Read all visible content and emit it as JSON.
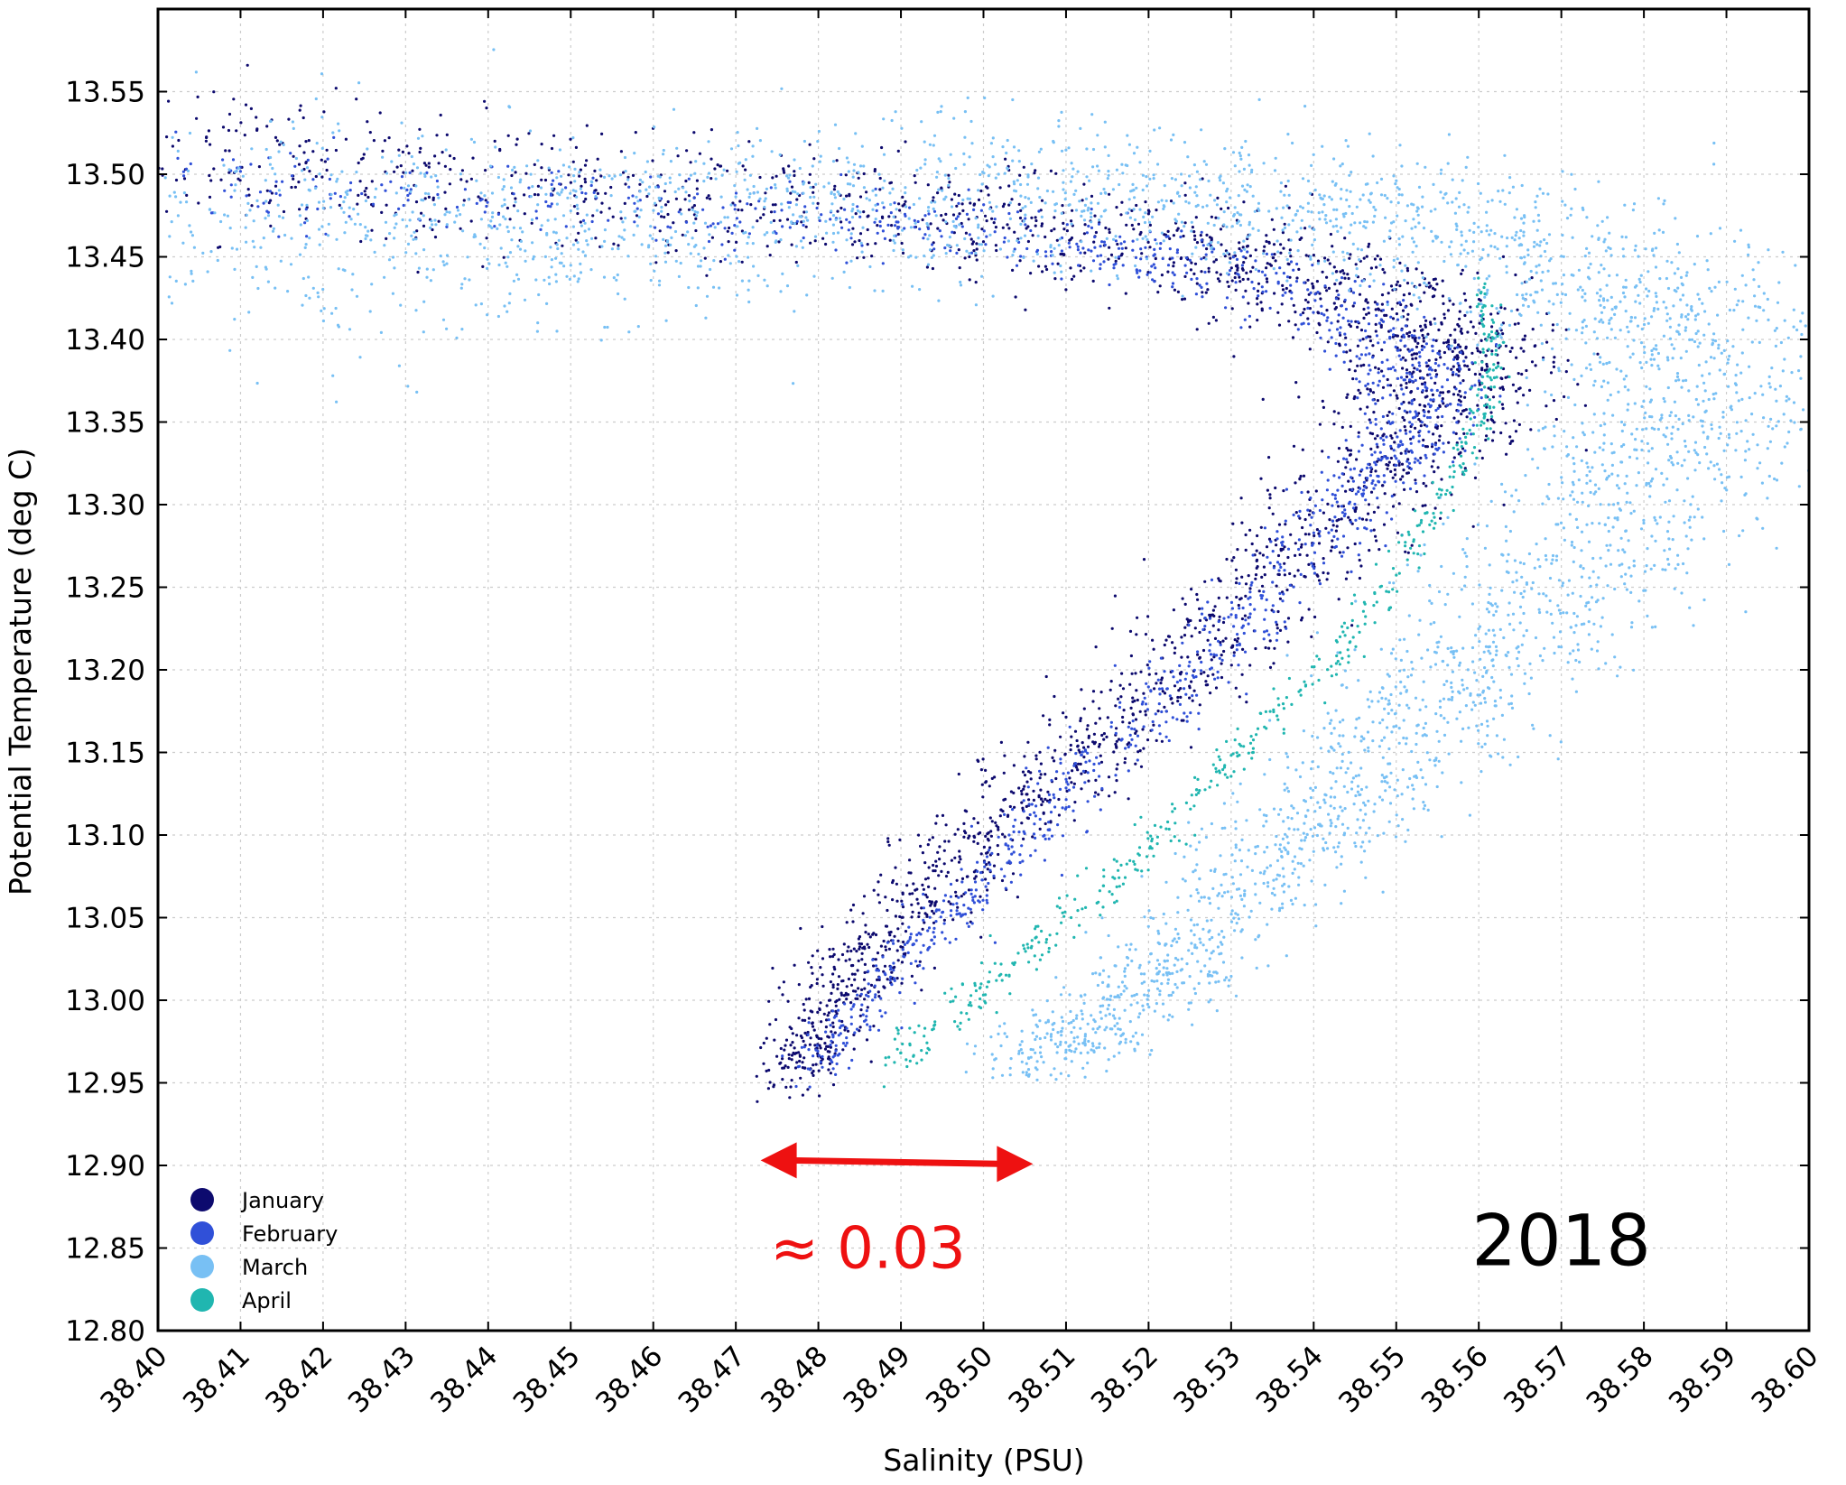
{
  "colors": {
    "January": "#0d0a6e",
    "February": "#3050d8",
    "March": "#78c0f4",
    "April": "#20b6b0",
    "annotation": "#ee1111",
    "grid": "#cccccc",
    "frame": "#000000"
  },
  "chart_data": {
    "type": "scatter",
    "title": "",
    "xlabel": "Salinity (PSU)",
    "ylabel": "Potential Temperature (deg C)",
    "xlim": [
      38.4,
      38.6
    ],
    "ylim": [
      12.8,
      13.6
    ],
    "grid": true,
    "legend_position": "bottom-left",
    "x_ticks": [
      "38.40",
      "38.41",
      "38.42",
      "38.43",
      "38.44",
      "38.45",
      "38.46",
      "38.47",
      "38.48",
      "38.49",
      "38.50",
      "38.51",
      "38.52",
      "38.53",
      "38.54",
      "38.55",
      "38.56",
      "38.57",
      "38.58",
      "38.59",
      "38.60"
    ],
    "y_ticks": [
      "12.80",
      "12.85",
      "12.90",
      "12.95",
      "13.00",
      "13.05",
      "13.10",
      "13.15",
      "13.20",
      "13.25",
      "13.30",
      "13.35",
      "13.40",
      "13.45",
      "13.50",
      "13.55"
    ],
    "series": [
      {
        "name": "January",
        "color": "#0d0a6e",
        "x": [
          38.4,
          38.43,
          38.46,
          38.49,
          38.51,
          38.53,
          38.545,
          38.553,
          38.557,
          38.554,
          38.546,
          38.536,
          38.524,
          38.512,
          38.5,
          38.49,
          38.482,
          38.476
        ],
        "y": [
          13.515,
          13.498,
          13.488,
          13.478,
          13.468,
          13.45,
          13.43,
          13.405,
          13.38,
          13.35,
          13.31,
          13.26,
          13.2,
          13.15,
          13.1,
          13.05,
          13.0,
          12.95
        ],
        "spread": [
          0.025,
          0.008
        ]
      },
      {
        "name": "February",
        "color": "#3050d8",
        "x": [
          38.4,
          38.44,
          38.48,
          38.51,
          38.53,
          38.545,
          38.552,
          38.553,
          38.55,
          38.544,
          38.536,
          38.526,
          38.515,
          38.505,
          38.495,
          38.486,
          38.479
        ],
        "y": [
          13.5,
          13.485,
          13.475,
          13.46,
          13.44,
          13.415,
          13.39,
          13.36,
          13.33,
          13.3,
          13.25,
          13.2,
          13.15,
          13.1,
          13.05,
          13.0,
          12.955
        ],
        "spread": [
          0.012,
          0.005
        ]
      },
      {
        "name": "March",
        "color": "#78c0f4",
        "x": [
          38.4,
          38.42,
          38.44,
          38.46,
          38.48,
          38.5,
          38.52,
          38.54,
          38.56,
          38.575,
          38.583,
          38.586,
          38.583,
          38.575,
          38.565,
          38.555,
          38.545,
          38.535,
          38.525,
          38.515,
          38.506
        ],
        "y": [
          13.47,
          13.465,
          13.462,
          13.47,
          13.48,
          13.49,
          13.485,
          13.478,
          13.47,
          13.44,
          13.41,
          13.37,
          13.33,
          13.28,
          13.23,
          13.18,
          13.13,
          13.08,
          13.03,
          12.99,
          12.96
        ],
        "spread": [
          0.04,
          0.012
        ]
      },
      {
        "name": "April",
        "color": "#20b6b0",
        "x": [
          38.489,
          38.496,
          38.503,
          38.511,
          38.519,
          38.527,
          38.535,
          38.543,
          38.55,
          38.556,
          38.56,
          38.562,
          38.56
        ],
        "y": [
          12.96,
          12.99,
          13.02,
          13.055,
          13.09,
          13.13,
          13.17,
          13.21,
          13.26,
          13.31,
          13.35,
          13.39,
          13.43
        ],
        "spread": [
          0.003,
          0.002
        ]
      }
    ],
    "annotations": [
      {
        "type": "double-arrow",
        "x": [
          38.473,
          38.506
        ],
        "y": 12.902,
        "color": "#ee1111"
      },
      {
        "type": "text",
        "text": "≈ 0.03",
        "x": 38.486,
        "y": 12.85,
        "color": "#ee1111"
      },
      {
        "type": "text",
        "text": "2018",
        "x": 38.57,
        "y": 12.855,
        "color": "#000000"
      }
    ]
  },
  "legend": {
    "items": [
      {
        "label": "January",
        "color": "#0d0a6e"
      },
      {
        "label": "February",
        "color": "#3050d8"
      },
      {
        "label": "March",
        "color": "#78c0f4"
      },
      {
        "label": "April",
        "color": "#20b6b0"
      }
    ]
  }
}
